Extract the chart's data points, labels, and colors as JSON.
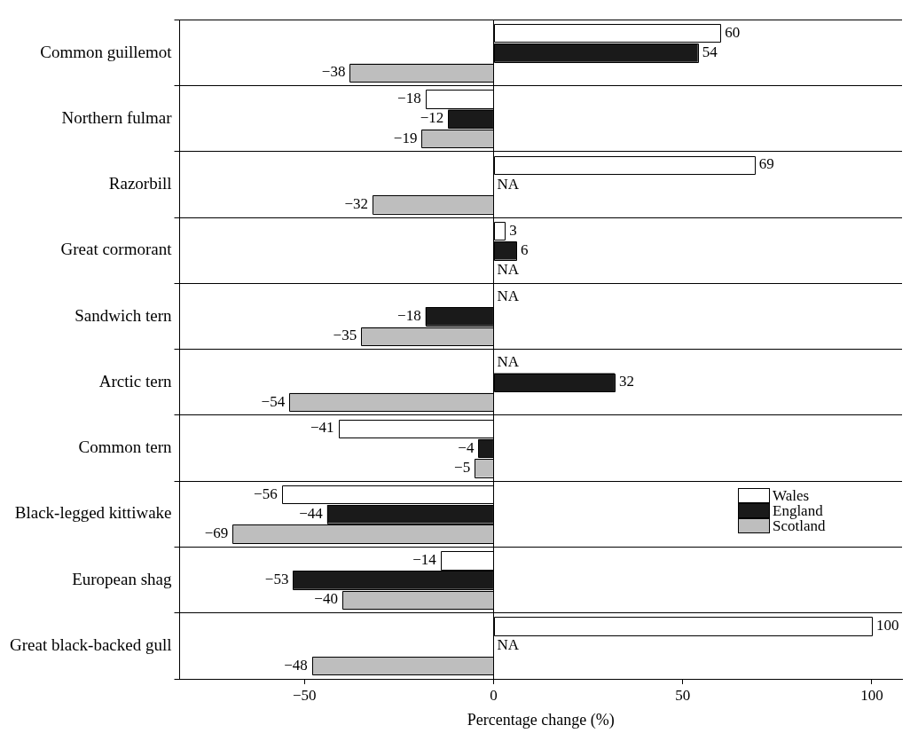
{
  "chart_data": {
    "type": "bar",
    "orientation": "horizontal",
    "xlabel": "Percentage change (%)",
    "categories": [
      "Common guillemot",
      "Northern fulmar",
      "Razorbill",
      "Great cormorant",
      "Sandwich tern",
      "Arctic tern",
      "Common tern",
      "Black-legged kittiwake",
      "European shag",
      "Great black-backed gull"
    ],
    "series": [
      {
        "name": "Wales",
        "color": "#ffffff",
        "values": [
          60,
          -18,
          69,
          3,
          null,
          null,
          -41,
          -56,
          -14,
          100
        ],
        "value_labels": [
          "60",
          "−18",
          "69",
          "3",
          "NA",
          "NA",
          "−41",
          "−56",
          "−14",
          "100"
        ]
      },
      {
        "name": "England",
        "color": "#1a1a1a",
        "values": [
          54,
          -12,
          null,
          6,
          -18,
          32,
          -4,
          -44,
          -53,
          null
        ],
        "value_labels": [
          "54",
          "−12",
          "NA",
          "6",
          "−18",
          "32",
          "−4",
          "−44",
          "−53",
          "NA"
        ]
      },
      {
        "name": "Scotland",
        "color": "#bebebe",
        "values": [
          -38,
          -19,
          -32,
          null,
          -35,
          -54,
          -5,
          -69,
          -40,
          -48
        ],
        "value_labels": [
          "−38",
          "−19",
          "−32",
          "NA",
          "−35",
          "−54",
          "−5",
          "−69",
          "−40",
          "−48"
        ]
      }
    ],
    "xlim": [
      -83,
      108
    ],
    "xticks": [
      {
        "value": -50,
        "label": "−50"
      },
      0,
      50,
      100
    ],
    "ref_lines": [
      {
        "axis": "x",
        "value": 0
      }
    ],
    "grid": "y",
    "legend": "right"
  }
}
